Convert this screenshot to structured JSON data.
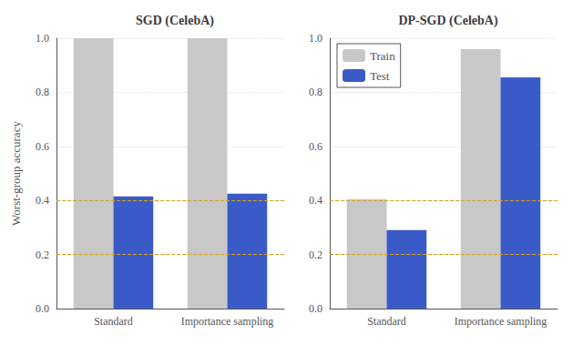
{
  "chart_data": [
    {
      "type": "bar",
      "title": "SGD (CelebA)",
      "ylabel": "Worst-group accuracy",
      "categories": [
        "Standard",
        "Importance sampling"
      ],
      "series": [
        {
          "name": "Train",
          "color": "#c8c8c8",
          "values": [
            1.0,
            1.0
          ]
        },
        {
          "name": "Test",
          "color": "#3a5bc7",
          "values": [
            0.415,
            0.425
          ]
        }
      ],
      "ylim": [
        0.0,
        1.0
      ],
      "yticks": [
        {
          "value": 0.0,
          "label": "0.0"
        },
        {
          "value": 0.2,
          "label": "0.2"
        },
        {
          "value": 0.4,
          "label": "0.4"
        },
        {
          "value": 0.6,
          "label": "0.6"
        },
        {
          "value": 0.8,
          "label": "0.8"
        },
        {
          "value": 1.0,
          "label": "1.0"
        }
      ],
      "grid": true,
      "reference_lines": {
        "values": [
          0.2,
          0.4
        ],
        "color": "#d4a020",
        "line_style": "dashed"
      }
    },
    {
      "type": "bar",
      "title": "DP-SGD (CelebA)",
      "categories": [
        "Standard",
        "Importance sampling"
      ],
      "series": [
        {
          "name": "Train",
          "color": "#c8c8c8",
          "values": [
            0.405,
            0.96
          ]
        },
        {
          "name": "Test",
          "color": "#3a5bc7",
          "values": [
            0.29,
            0.855
          ]
        }
      ],
      "ylim": [
        0.0,
        1.0
      ],
      "yticks": [
        {
          "value": 0.0,
          "label": "0.0"
        },
        {
          "value": 0.2,
          "label": "0.2"
        },
        {
          "value": 0.4,
          "label": "0.4"
        },
        {
          "value": 0.6,
          "label": "0.6"
        },
        {
          "value": 0.8,
          "label": "0.8"
        },
        {
          "value": 1.0,
          "label": "1.0"
        }
      ],
      "grid": true,
      "legend": "upper left",
      "reference_lines": {
        "values": [
          0.2,
          0.4
        ],
        "color": "#d4a020",
        "line_style": "dashed"
      }
    }
  ]
}
